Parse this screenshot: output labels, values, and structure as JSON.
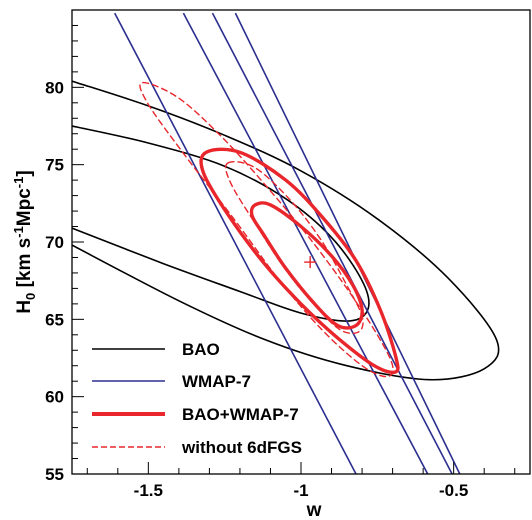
{
  "chart_data": {
    "type": "contour",
    "xlabel": "w",
    "ylabel_main": "H",
    "ylabel_sub": "0",
    "ylabel_unit": " [km s",
    "ylabel_exp1": "-1",
    "ylabel_mid": "Mpc",
    "ylabel_exp2": "-1",
    "ylabel_end": "]",
    "xlim": [
      -1.75,
      -0.25
    ],
    "ylim": [
      55,
      85
    ],
    "xticks": [
      -1.5,
      -1,
      -0.5
    ],
    "xtick_labels": [
      "-1.5",
      "-1",
      "-0.5"
    ],
    "yticks": [
      55,
      60,
      65,
      70,
      75,
      80
    ],
    "ytick_labels": [
      "55",
      "60",
      "65",
      "70",
      "75",
      "80"
    ],
    "colors": {
      "bao": "#000000",
      "wmap": "#2b2f8f",
      "combined": "#e8262b",
      "no6df": "#e8262b"
    },
    "legend": [
      {
        "label": "BAO",
        "style": "bao"
      },
      {
        "label": "WMAP-7",
        "style": "wmap"
      },
      {
        "label": "BAO+WMAP-7",
        "style": "combined"
      },
      {
        "label": "without 6dFGS",
        "style": "no6df"
      }
    ],
    "best_fit": {
      "w": -0.97,
      "H0": 68.7
    },
    "series": [
      {
        "name": "BAO",
        "level": "inner",
        "points": [
          [
            -1.75,
            77.5
          ],
          [
            -1.5,
            76.4
          ],
          [
            -1.25,
            74.9
          ],
          [
            -1.05,
            72.8
          ],
          [
            -0.9,
            70.3
          ],
          [
            -0.8,
            67.5
          ],
          [
            -0.78,
            65.7
          ],
          [
            -0.84,
            64.9
          ],
          [
            -1.0,
            65.4
          ],
          [
            -1.2,
            66.8
          ],
          [
            -1.45,
            68.6
          ],
          [
            -1.75,
            70.9
          ]
        ]
      },
      {
        "name": "BAO",
        "level": "outer",
        "points": [
          [
            -1.75,
            80.4
          ],
          [
            -1.5,
            78.8
          ],
          [
            -1.25,
            76.9
          ],
          [
            -1.0,
            74.6
          ],
          [
            -0.75,
            71.5
          ],
          [
            -0.52,
            67.7
          ],
          [
            -0.36,
            63.7
          ],
          [
            -0.4,
            61.8
          ],
          [
            -0.58,
            61.1
          ],
          [
            -0.85,
            62.0
          ],
          [
            -1.12,
            63.7
          ],
          [
            -1.4,
            66.2
          ],
          [
            -1.75,
            69.8
          ]
        ]
      },
      {
        "name": "WMAP-7",
        "level": "inner",
        "points": [
          [
            -1.385,
            84.8
          ],
          [
            -0.585,
            55.0
          ]
        ]
      },
      {
        "name": "WMAP-7",
        "level": "inner",
        "points": [
          [
            -1.29,
            84.8
          ],
          [
            -0.505,
            55.0
          ]
        ]
      },
      {
        "name": "WMAP-7",
        "level": "outer",
        "points": [
          [
            -1.61,
            84.8
          ],
          [
            -0.82,
            55.0
          ]
        ]
      },
      {
        "name": "WMAP-7",
        "level": "outer",
        "points": [
          [
            -1.215,
            84.8
          ],
          [
            -0.48,
            55.0
          ]
        ]
      },
      {
        "name": "BAO+WMAP-7",
        "level": "inner",
        "points": [
          [
            -1.15,
            72.4
          ],
          [
            -1.1,
            72.4
          ],
          [
            -1.0,
            71.0
          ],
          [
            -0.9,
            69.1
          ],
          [
            -0.83,
            67.2
          ],
          [
            -0.8,
            65.6
          ],
          [
            -0.82,
            64.6
          ],
          [
            -0.88,
            64.6
          ],
          [
            -0.96,
            66.1
          ],
          [
            -1.05,
            68.3
          ],
          [
            -1.12,
            70.4
          ],
          [
            -1.16,
            71.7
          ]
        ]
      },
      {
        "name": "BAO+WMAP-7",
        "level": "outer",
        "points": [
          [
            -1.31,
            75.8
          ],
          [
            -1.2,
            75.8
          ],
          [
            -1.05,
            74.0
          ],
          [
            -0.93,
            71.6
          ],
          [
            -0.82,
            68.8
          ],
          [
            -0.74,
            65.6
          ],
          [
            -0.69,
            62.6
          ],
          [
            -0.69,
            61.6
          ],
          [
            -0.76,
            62.0
          ],
          [
            -0.88,
            63.8
          ],
          [
            -1.0,
            66.0
          ],
          [
            -1.12,
            68.6
          ],
          [
            -1.24,
            71.8
          ],
          [
            -1.32,
            74.5
          ]
        ]
      },
      {
        "name": "without 6dFGS",
        "level": "inner",
        "points": [
          [
            -1.24,
            75.1
          ],
          [
            -1.15,
            74.8
          ],
          [
            -1.03,
            72.6
          ],
          [
            -0.93,
            70.0
          ],
          [
            -0.85,
            67.2
          ],
          [
            -0.8,
            65.2
          ],
          [
            -0.81,
            64.2
          ],
          [
            -0.87,
            64.3
          ],
          [
            -0.95,
            65.8
          ],
          [
            -1.05,
            68.2
          ],
          [
            -1.15,
            71.2
          ],
          [
            -1.23,
            73.8
          ]
        ]
      },
      {
        "name": "without 6dFGS",
        "level": "outer",
        "points": [
          [
            -1.52,
            80.3
          ],
          [
            -1.4,
            79.3
          ],
          [
            -1.25,
            76.6
          ],
          [
            -1.1,
            73.3
          ],
          [
            -0.97,
            70.2
          ],
          [
            -0.85,
            67.0
          ],
          [
            -0.75,
            64.0
          ],
          [
            -0.7,
            62.0
          ],
          [
            -0.72,
            61.3
          ],
          [
            -0.8,
            62.0
          ],
          [
            -0.93,
            64.3
          ],
          [
            -1.07,
            67.5
          ],
          [
            -1.22,
            71.5
          ],
          [
            -1.38,
            75.6
          ],
          [
            -1.5,
            78.9
          ]
        ]
      }
    ]
  }
}
